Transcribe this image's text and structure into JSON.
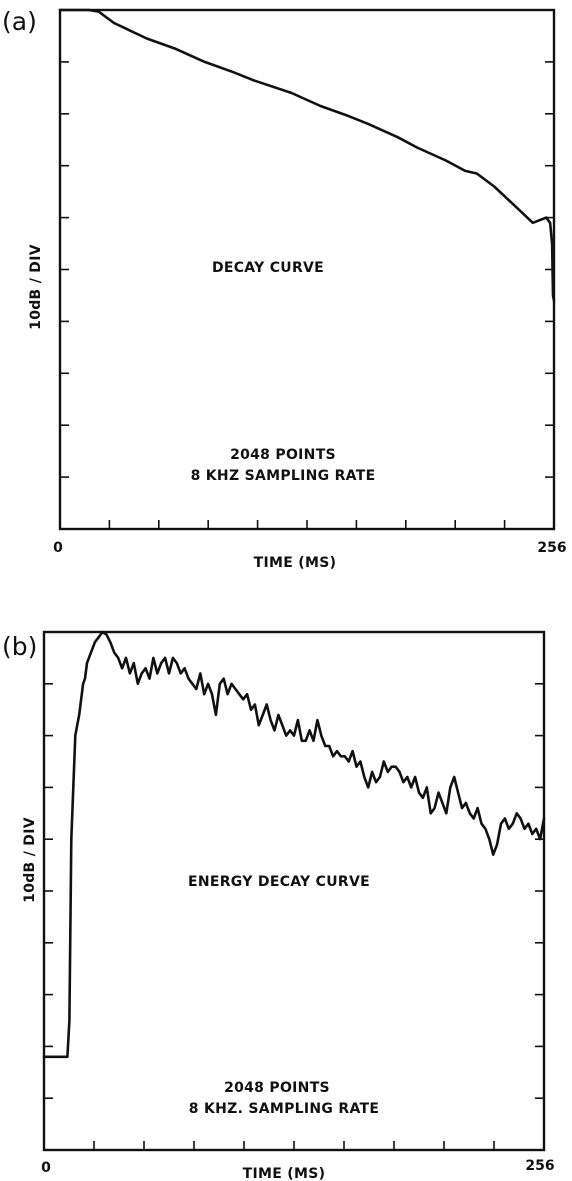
{
  "chart_data": [
    {
      "panel_label": "(a)",
      "type": "line",
      "title": "DECAY CURVE",
      "annotation": [
        "2048 POINTS",
        "8 KHZ SAMPLING RATE"
      ],
      "xlabel": "TIME (MS)",
      "ylabel": "10dB / DIV",
      "xlim": [
        0,
        256
      ],
      "ylim": [
        -100,
        0
      ],
      "x_tick_labels": [
        "0",
        "256"
      ],
      "x_divisions": 10,
      "y_divisions": 10,
      "grid": false,
      "series": [
        {
          "x": [
            0,
            15,
            20,
            28,
            45,
            60,
            75,
            90,
            100,
            120,
            135,
            150,
            160,
            175,
            185,
            200,
            210,
            216,
            225,
            235,
            245,
            252,
            254,
            255,
            255.5,
            256
          ],
          "y": [
            0.5,
            0,
            -0.3,
            -2.5,
            -5.5,
            -7.5,
            -10,
            -12,
            -13.5,
            -16,
            -18.5,
            -20.5,
            -22,
            -24.5,
            -26.5,
            -29,
            -31,
            -31.5,
            -34,
            -37.5,
            -41,
            -40,
            -41,
            -45,
            -55,
            -56
          ]
        }
      ]
    },
    {
      "panel_label": "(b)",
      "type": "line",
      "title": "ENERGY DECAY CURVE",
      "annotation": [
        "2048 POINTS",
        "8 KHZ. SAMPLING RATE"
      ],
      "xlabel": "TIME (MS)",
      "ylabel": "10dB / DIV",
      "xlim": [
        0,
        256
      ],
      "ylim": [
        -100,
        0
      ],
      "x_tick_labels": [
        "0",
        "256"
      ],
      "x_divisions": 10,
      "y_divisions": 10,
      "grid": false,
      "series": [
        {
          "x": [
            0,
            12,
            13,
            14,
            15,
            16,
            17,
            18,
            20,
            21,
            22,
            24,
            26,
            28,
            30,
            32,
            34,
            36,
            38,
            40,
            42,
            44,
            46,
            48,
            50,
            52,
            54,
            56,
            58,
            60,
            62,
            64,
            66,
            68,
            70,
            72,
            74,
            76,
            78,
            80,
            82,
            84,
            86,
            88,
            90,
            92,
            94,
            96,
            98,
            100,
            102,
            104,
            106,
            108,
            110,
            112,
            114,
            116,
            118,
            120,
            122,
            124,
            126,
            128,
            130,
            132,
            134,
            136,
            138,
            140,
            142,
            144,
            146,
            148,
            150,
            152,
            154,
            156,
            158,
            160,
            162,
            164,
            166,
            168,
            170,
            172,
            174,
            176,
            178,
            180,
            182,
            184,
            186,
            188,
            190,
            192,
            194,
            196,
            198,
            200,
            202,
            204,
            206,
            208,
            210,
            212,
            214,
            216,
            218,
            220,
            222,
            224,
            226,
            228,
            230,
            232,
            234,
            236,
            238,
            240,
            242,
            244,
            246,
            248,
            250,
            252,
            254,
            256
          ],
          "y": [
            -82,
            -82,
            -75,
            -40,
            -30,
            -20,
            -18,
            -16,
            -10,
            -9,
            -6,
            -4,
            -2,
            -1,
            0,
            -0.5,
            -2,
            -4,
            -5,
            -7,
            -5,
            -8,
            -6,
            -10,
            -8,
            -7,
            -9,
            -5,
            -8,
            -6,
            -5,
            -8,
            -5,
            -6,
            -8,
            -7,
            -9,
            -10,
            -11,
            -8,
            -12,
            -10,
            -12,
            -16,
            -10,
            -9,
            -12,
            -10,
            -11,
            -12,
            -13,
            -12,
            -15,
            -14,
            -18,
            -16,
            -14,
            -17,
            -19,
            -16,
            -18,
            -20,
            -19,
            -20,
            -17,
            -21,
            -21,
            -19,
            -21,
            -17,
            -20,
            -22,
            -22,
            -24,
            -23,
            -24,
            -24,
            -25,
            -23,
            -26,
            -25,
            -28,
            -30,
            -27,
            -29,
            -28,
            -25,
            -27,
            -26,
            -26,
            -27,
            -29,
            -28,
            -30,
            -28,
            -31,
            -32,
            -30,
            -35,
            -34,
            -31,
            -33,
            -35,
            -30,
            -28,
            -31,
            -34,
            -33,
            -35,
            -36,
            -34,
            -37,
            -38,
            -40,
            -43,
            -41,
            -37,
            -36,
            -38,
            -37,
            -35,
            -36,
            -38,
            -37,
            -39,
            -38,
            -40,
            -36
          ]
        }
      ]
    }
  ]
}
